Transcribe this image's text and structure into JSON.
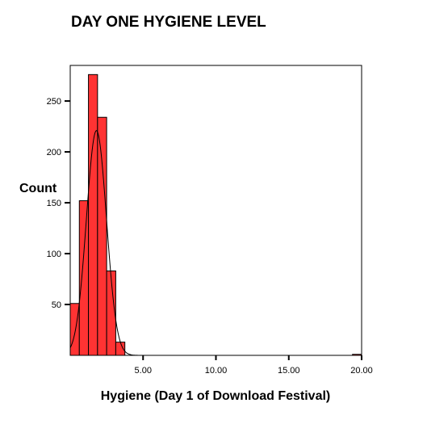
{
  "chart_data": {
    "type": "bar",
    "title": "DAY ONE HYGIENE LEVEL",
    "xlabel": "Hygiene (Day 1 of Download Festival)",
    "ylabel": "Count",
    "xlim": [
      0,
      20
    ],
    "ylim": [
      0,
      285
    ],
    "x_ticks": [
      {
        "value": 5,
        "label": "5.00"
      },
      {
        "value": 10,
        "label": "10.00"
      },
      {
        "value": 15,
        "label": "15.00"
      },
      {
        "value": 20,
        "label": "20.00"
      }
    ],
    "y_ticks": [
      {
        "value": 50,
        "label": "50"
      },
      {
        "value": 100,
        "label": "100"
      },
      {
        "value": 150,
        "label": "150"
      },
      {
        "value": 200,
        "label": "200"
      },
      {
        "value": 250,
        "label": "250"
      }
    ],
    "bin_width": 0.625,
    "bins": [
      {
        "start": 0.0,
        "count": 51
      },
      {
        "start": 0.625,
        "count": 152
      },
      {
        "start": 1.25,
        "count": 276
      },
      {
        "start": 1.875,
        "count": 234
      },
      {
        "start": 2.5,
        "count": 83
      },
      {
        "start": 3.125,
        "count": 13
      },
      {
        "start": 19.375,
        "count": 1
      }
    ],
    "normal_curve": {
      "mean": 1.8,
      "sd": 0.69,
      "peak": 221
    },
    "bar_color": "#ff3333",
    "bar_stroke": "#000000",
    "grid": false
  }
}
